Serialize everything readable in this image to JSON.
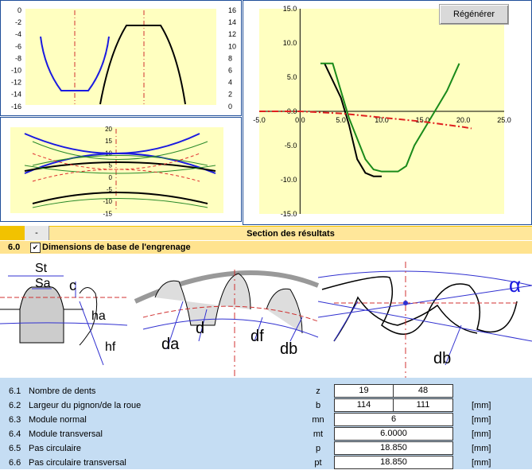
{
  "toolbar": {
    "regenerate_label": "Régénérer"
  },
  "chart_data": [
    {
      "type": "line",
      "yleft_ticks": [
        "0",
        "-2",
        "-4",
        "-6",
        "-8",
        "-10",
        "-12",
        "-14",
        "-16"
      ],
      "yright_ticks": [
        "16",
        "14",
        "12",
        "10",
        "8",
        "6",
        "4",
        "2",
        "0"
      ]
    },
    {
      "type": "line",
      "y_ticks": [
        "20",
        "15",
        "10",
        "5",
        "0",
        "-5",
        "-10",
        "-15"
      ]
    },
    {
      "type": "line",
      "x_ticks": [
        "-5.0",
        "0.0",
        "5.0",
        "10.0",
        "15.0",
        "20.0",
        "25.0"
      ],
      "y_ticks": [
        "15.0",
        "10.0",
        "5.0",
        "0.0",
        "-5.0",
        "-10.0",
        "-15.0"
      ],
      "xlim": [
        -5,
        25
      ],
      "ylim": [
        -15,
        15
      ],
      "series": [
        {
          "color": "#000000",
          "x": [
            3,
            5,
            6,
            7,
            8,
            9,
            10
          ],
          "y": [
            7,
            2,
            -2,
            -7,
            -9,
            -9.5,
            -9.5
          ]
        },
        {
          "color": "#1a8a1a",
          "x": [
            2.5,
            4,
            5,
            6,
            7,
            8,
            9,
            10,
            11,
            12,
            13,
            14,
            16,
            18,
            19.5
          ],
          "y": [
            7,
            7,
            3,
            -1,
            -4,
            -7,
            -8.5,
            -8.8,
            -8.8,
            -8.8,
            -8,
            -5,
            -1,
            3,
            7
          ]
        },
        {
          "color": "#e02020",
          "x": [
            -5,
            0,
            5,
            10,
            15,
            20,
            21
          ],
          "y": [
            0,
            0,
            -0.3,
            -0.9,
            -1.5,
            -2.3,
            -2.5
          ]
        }
      ]
    }
  ],
  "results_bar": {
    "collapse": "-",
    "title": "Section des résultats"
  },
  "section": {
    "number": "6.0",
    "check": "✔",
    "title": "Dimensions de base de l'engrenage"
  },
  "drawing_labels": {
    "st": "St",
    "sa": "Sa",
    "c": "c",
    "ha": "ha",
    "hf": "hf",
    "da": "da",
    "d": "d",
    "df": "df",
    "db": "db",
    "db2": "db",
    "alpha": "α"
  },
  "rows": [
    {
      "num": "6.1",
      "label": "Nombre de dents",
      "sym": "z",
      "v1": "19",
      "v2": "48",
      "unit": ""
    },
    {
      "num": "6.2",
      "label": "Largeur du pignon/de la roue",
      "sym": "b",
      "v1": "114",
      "v2": "111",
      "unit": "[mm]"
    },
    {
      "num": "6.3",
      "label": "Module normal",
      "sym": "mn",
      "v": "6",
      "unit": "[mm]"
    },
    {
      "num": "6.4",
      "label": "Module transversal",
      "sym": "mt",
      "v": "6.0000",
      "unit": "[mm]"
    },
    {
      "num": "6.5",
      "label": "Pas circulaire",
      "sym": "p",
      "v": "18.850",
      "unit": "[mm]"
    },
    {
      "num": "6.6",
      "label": "Pas circulaire transversal",
      "sym": "pt",
      "v": "18.850",
      "unit": "[mm]"
    }
  ]
}
